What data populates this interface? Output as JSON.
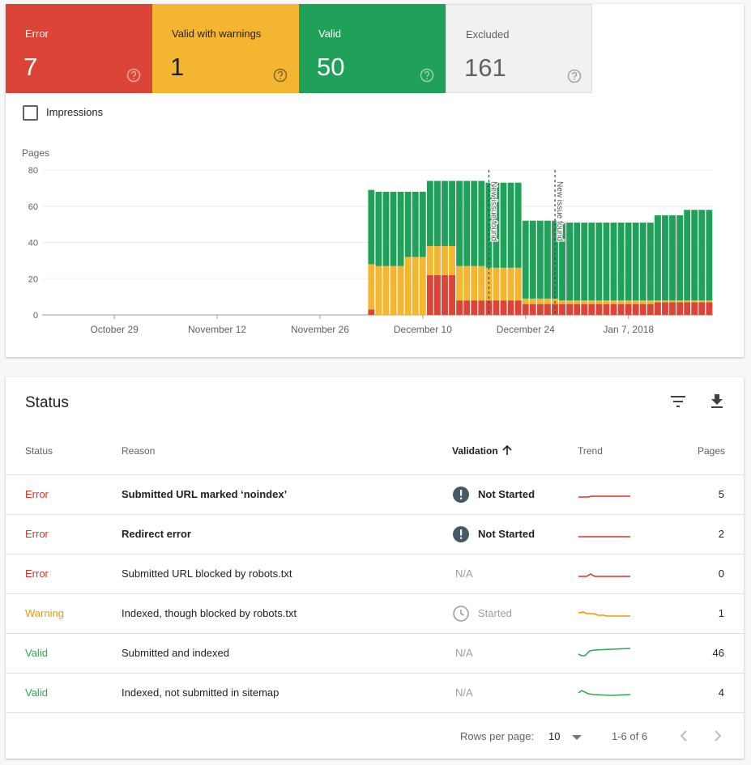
{
  "summary": [
    {
      "label": "Error",
      "value": 7,
      "color": "#db4437",
      "text_color": "#ffffff"
    },
    {
      "label": "Valid with warnings",
      "value": 1,
      "color": "#f4b631",
      "text_color": "#212121"
    },
    {
      "label": "Valid",
      "value": 50,
      "color": "#1fa15a",
      "text_color": "#ffffff"
    },
    {
      "label": "Excluded",
      "value": 161,
      "color": "#f1f1f1",
      "text_color": "#616161"
    }
  ],
  "impressions_label": "Impressions",
  "chart_data": {
    "type": "bar",
    "stacked": true,
    "ylabel": "Pages",
    "categories": [
      null,
      null,
      null,
      null,
      null,
      null,
      null,
      null,
      null,
      "October 29",
      null,
      null,
      null,
      null,
      null,
      null,
      null,
      null,
      null,
      null,
      null,
      null,
      null,
      "November 12",
      null,
      null,
      null,
      null,
      null,
      null,
      null,
      null,
      null,
      null,
      null,
      null,
      null,
      "November 26",
      null,
      null,
      null,
      null,
      null,
      null,
      null,
      null,
      null,
      null,
      null,
      null,
      null,
      "December 10",
      null,
      null,
      null,
      null,
      null,
      null,
      null,
      null,
      null,
      null,
      null,
      null,
      null,
      "December 24",
      null,
      null,
      null,
      null,
      null,
      null,
      null,
      null,
      null,
      null,
      null,
      null,
      null,
      "Jan 7, 2018",
      null,
      null,
      null,
      null,
      null,
      null,
      null,
      null,
      null,
      null,
      null
    ],
    "series": [
      {
        "name": "Error",
        "color": "#db4437",
        "values": [
          0,
          0,
          0,
          0,
          0,
          0,
          0,
          0,
          0,
          0,
          0,
          0,
          0,
          0,
          0,
          0,
          0,
          0,
          0,
          0,
          0,
          0,
          0,
          0,
          0,
          0,
          0,
          0,
          0,
          0,
          0,
          0,
          0,
          0,
          0,
          0,
          0,
          0,
          0,
          0,
          0,
          0,
          0,
          0,
          3,
          0,
          0,
          0,
          0,
          0,
          0,
          0,
          22,
          22,
          22,
          22,
          8,
          8,
          8,
          8,
          8,
          8,
          8,
          8,
          8,
          6,
          6,
          6,
          6,
          6,
          6,
          6,
          6,
          6,
          6,
          6,
          6,
          6,
          6,
          6,
          6,
          6,
          6,
          7,
          7,
          7,
          7,
          7,
          7,
          7,
          7
        ]
      },
      {
        "name": "Valid with warnings",
        "color": "#f4b631",
        "values": [
          0,
          0,
          0,
          0,
          0,
          0,
          0,
          0,
          0,
          0,
          0,
          0,
          0,
          0,
          0,
          0,
          0,
          0,
          0,
          0,
          0,
          0,
          0,
          0,
          0,
          0,
          0,
          0,
          0,
          0,
          0,
          0,
          0,
          0,
          0,
          0,
          0,
          0,
          0,
          0,
          0,
          0,
          0,
          0,
          25,
          27,
          27,
          27,
          27,
          32,
          32,
          32,
          16,
          16,
          16,
          16,
          19,
          19,
          19,
          19,
          18,
          18,
          18,
          18,
          18,
          3,
          3,
          3,
          3,
          3,
          2,
          2,
          2,
          2,
          2,
          2,
          2,
          2,
          2,
          2,
          2,
          2,
          2,
          1,
          1,
          1,
          1,
          1,
          1,
          1,
          1
        ]
      },
      {
        "name": "Valid",
        "color": "#1fa15a",
        "values": [
          0,
          0,
          0,
          0,
          0,
          0,
          0,
          0,
          0,
          0,
          0,
          0,
          0,
          0,
          0,
          0,
          0,
          0,
          0,
          0,
          0,
          0,
          0,
          0,
          0,
          0,
          0,
          0,
          0,
          0,
          0,
          0,
          0,
          0,
          0,
          0,
          0,
          0,
          0,
          0,
          0,
          0,
          0,
          0,
          41,
          41,
          41,
          41,
          41,
          36,
          36,
          36,
          36,
          36,
          36,
          36,
          47,
          47,
          47,
          47,
          47,
          47,
          47,
          47,
          47,
          43,
          43,
          43,
          43,
          43,
          43,
          43,
          43,
          43,
          43,
          43,
          43,
          43,
          43,
          43,
          43,
          43,
          43,
          47,
          47,
          47,
          47,
          50,
          50,
          50,
          50
        ]
      }
    ],
    "ylim": [
      0,
      80
    ],
    "yticks": [
      0,
      20,
      40,
      60,
      80
    ],
    "grid": true,
    "annotations": [
      {
        "text": "New issue found",
        "index": 60
      },
      {
        "text": "New issue found",
        "index": 69
      }
    ]
  },
  "status_table": {
    "title": "Status",
    "columns": [
      "Status",
      "Reason",
      "Validation",
      "Trend",
      "Pages"
    ],
    "rows": [
      {
        "status": "Error",
        "color": "#d93025",
        "reason": "Submitted URL marked ‘noindex’",
        "bold": true,
        "validation": "Not Started",
        "icon": "alert",
        "pages": 5
      },
      {
        "status": "Error",
        "color": "#d93025",
        "reason": "Redirect error",
        "bold": true,
        "validation": "Not Started",
        "icon": "alert",
        "pages": 2
      },
      {
        "status": "Error",
        "color": "#d93025",
        "reason": "Submitted URL blocked by robots.txt",
        "bold": false,
        "validation": "N/A",
        "icon": null,
        "pages": 0
      },
      {
        "status": "Warning",
        "color": "#f29900",
        "reason": "Indexed, though blocked by robots.txt",
        "bold": false,
        "validation": "Started",
        "icon": "clock",
        "pages": 1
      },
      {
        "status": "Valid",
        "color": "#34a853",
        "reason": "Submitted and indexed",
        "bold": false,
        "validation": "N/A",
        "icon": null,
        "pages": 46
      },
      {
        "status": "Valid",
        "color": "#34a853",
        "reason": "Indexed, not submitted in sitemap",
        "bold": false,
        "validation": "N/A",
        "icon": null,
        "pages": 4
      }
    ]
  },
  "pagination": {
    "rows_per_page_label": "Rows per page:",
    "rows_per_page": 10,
    "range": "1-6 of 6"
  }
}
